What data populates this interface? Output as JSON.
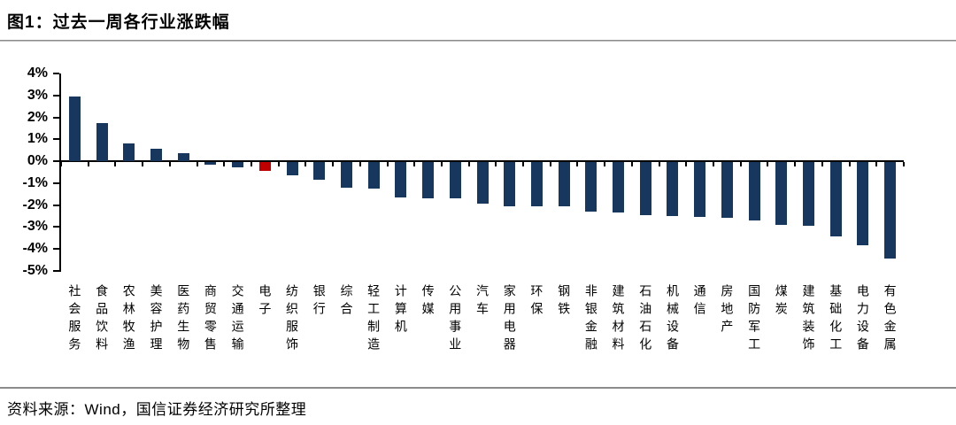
{
  "header": {
    "title": "图1：过去一周各行业涨跌幅"
  },
  "footer": {
    "source": "资料来源：Wind，国信证券经济研究所整理"
  },
  "chart_data": {
    "type": "bar",
    "title": "过去一周各行业涨跌幅",
    "xlabel": "",
    "ylabel": "",
    "unit": "%",
    "ylim": [
      -5,
      4
    ],
    "ytick_step": 1,
    "yticks": [
      "4%",
      "3%",
      "2%",
      "1%",
      "0%",
      "-1%",
      "-2%",
      "-3%",
      "-4%",
      "-5%"
    ],
    "grid": false,
    "legend": false,
    "bar_color": "#17375E",
    "highlight_color": "#C00000",
    "highlight_index": 7,
    "categories": [
      "社会服务",
      "食品饮料",
      "农林牧渔",
      "美容护理",
      "医药生物",
      "商贸零售",
      "交通运输",
      "电子",
      "纺织服饰",
      "银行",
      "综合",
      "轻工制造",
      "计算机",
      "传媒",
      "公用事业",
      "汽车",
      "家用电器",
      "环保",
      "钢铁",
      "非银金融",
      "建筑材料",
      "石油石化",
      "机械设备",
      "通信",
      "房地产",
      "国防军工",
      "煤炭",
      "建筑装饰",
      "基础化工",
      "电力设备",
      "有色金属"
    ],
    "values": [
      2.95,
      1.75,
      0.8,
      0.55,
      0.35,
      -0.1,
      -0.25,
      -0.4,
      -0.6,
      -0.8,
      -1.15,
      -1.2,
      -1.6,
      -1.65,
      -1.65,
      -1.9,
      -2.0,
      -2.0,
      -2.0,
      -2.25,
      -2.3,
      -2.4,
      -2.45,
      -2.5,
      -2.55,
      -2.65,
      -2.85,
      -2.9,
      -3.4,
      -3.8,
      -4.4
    ]
  }
}
